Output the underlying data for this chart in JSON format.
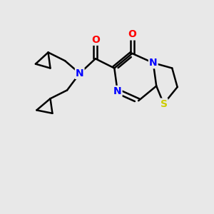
{
  "background_color": "#e8e8e8",
  "atom_colors": {
    "C": "#000000",
    "N": "#0000ff",
    "O": "#ff0000",
    "S": "#cccc00"
  },
  "bond_color": "#000000",
  "bond_width": 1.8,
  "font_size_atoms": 10,
  "figsize": [
    3.0,
    3.0
  ],
  "dpi": 100,
  "xlim": [
    0,
    10
  ],
  "ylim": [
    0,
    10
  ]
}
